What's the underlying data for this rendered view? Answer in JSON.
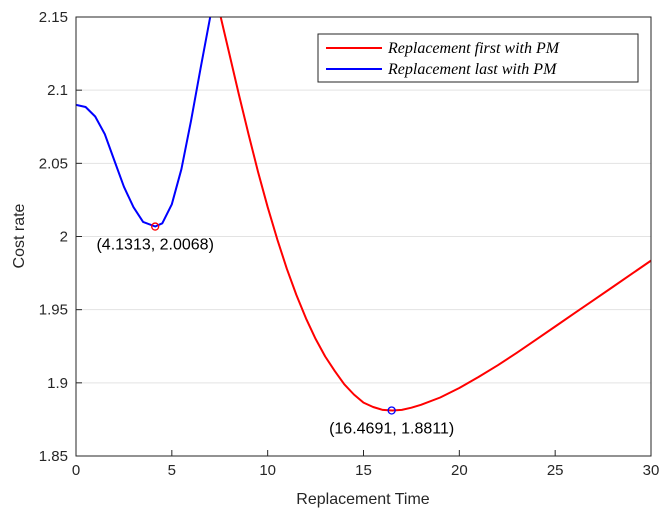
{
  "chart_data": {
    "type": "line",
    "title": "",
    "xlabel": "Replacement Time",
    "ylabel": "Cost rate",
    "xlim": [
      0,
      30
    ],
    "ylim": [
      1.85,
      2.15
    ],
    "xticks": [
      "0",
      "5",
      "10",
      "15",
      "20",
      "25",
      "30"
    ],
    "yticks": [
      "1.85",
      "1.9",
      "1.95",
      "2",
      "2.05",
      "2.1",
      "2.15"
    ],
    "grid": "horizontal",
    "legend_position": "top-right",
    "series": [
      {
        "name": "Replacement first with PM",
        "color": "#ff0000",
        "x": [
          7.55,
          8,
          8.5,
          9,
          9.5,
          10,
          10.5,
          11,
          11.5,
          12,
          12.5,
          13,
          13.5,
          14,
          14.5,
          15,
          15.5,
          16,
          16.5,
          17,
          17.5,
          18,
          19,
          20,
          21,
          22,
          23,
          24,
          25,
          26,
          27,
          28,
          29,
          30
        ],
        "y": [
          2.15,
          2.125,
          2.097,
          2.07,
          2.044,
          2.02,
          1.998,
          1.978,
          1.96,
          1.944,
          1.93,
          1.918,
          1.908,
          1.899,
          1.892,
          1.8865,
          1.8835,
          1.8815,
          1.8811,
          1.8815,
          1.883,
          1.885,
          1.89,
          1.8965,
          1.904,
          1.912,
          1.9205,
          1.9295,
          1.9385,
          1.9475,
          1.9565,
          1.9655,
          1.9745,
          1.9835
        ]
      },
      {
        "name": "Replacement last with PM",
        "color": "#0000ff",
        "x": [
          0,
          0.5,
          1,
          1.5,
          2,
          2.5,
          3,
          3.5,
          4.1313,
          4.5,
          5,
          5.5,
          6,
          6.5,
          7,
          7.2
        ],
        "y": [
          2.09,
          2.0885,
          2.082,
          2.07,
          2.052,
          2.034,
          2.02,
          2.01,
          2.0068,
          2.009,
          2.022,
          2.046,
          2.079,
          2.115,
          2.15,
          2.162
        ]
      }
    ],
    "markers": [
      {
        "x": 4.1313,
        "y": 2.0068,
        "color": "#ff0000",
        "label": "(4.1313, 2.0068)"
      },
      {
        "x": 16.4691,
        "y": 1.8811,
        "color": "#0000ff",
        "label": "(16.4691, 1.8811)"
      }
    ]
  }
}
